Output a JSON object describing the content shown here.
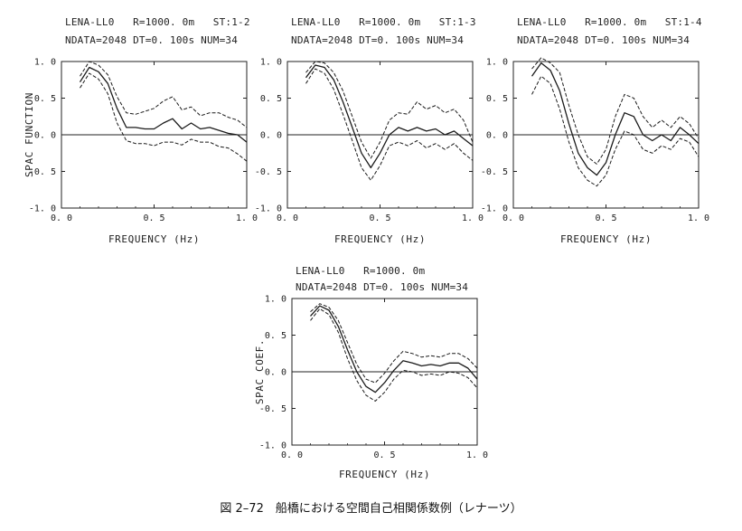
{
  "caption": "図 2–72　船橋における空間自己相関係数例（レナーツ）",
  "chart_data": [
    {
      "type": "line",
      "header": {
        "station": "LENA-LL0",
        "radius": "R=1000. 0m",
        "st": "ST:1-2",
        "ndata": "NDATA=2048",
        "dt": "DT=0. 100s",
        "num": "NUM=34"
      },
      "xlabel": "FREQUENCY (Hz)",
      "ylabel": "SPAC FUNCTION",
      "xlim": [
        0.0,
        1.0
      ],
      "ylim": [
        -1.0,
        1.0
      ],
      "xticks": [
        "0. 0",
        "0. 5",
        "1. 0"
      ],
      "yticks": [
        "1. 0",
        "0. 5",
        "0. 0",
        "-0. 5",
        "-1. 0"
      ],
      "x": [
        0.1,
        0.15,
        0.2,
        0.25,
        0.3,
        0.35,
        0.4,
        0.45,
        0.5,
        0.55,
        0.6,
        0.65,
        0.7,
        0.75,
        0.8,
        0.85,
        0.9,
        0.95,
        1.0
      ],
      "series": [
        {
          "role": "upper",
          "values": [
            0.8,
            1.0,
            0.95,
            0.82,
            0.52,
            0.3,
            0.28,
            0.32,
            0.36,
            0.46,
            0.52,
            0.34,
            0.38,
            0.26,
            0.3,
            0.3,
            0.24,
            0.2,
            0.1
          ]
        },
        {
          "role": "mean",
          "values": [
            0.72,
            0.92,
            0.86,
            0.7,
            0.36,
            0.1,
            0.1,
            0.08,
            0.08,
            0.16,
            0.22,
            0.08,
            0.16,
            0.08,
            0.1,
            0.06,
            0.02,
            0.0,
            -0.1
          ]
        },
        {
          "role": "lower",
          "values": [
            0.64,
            0.84,
            0.76,
            0.56,
            0.16,
            -0.08,
            -0.12,
            -0.12,
            -0.15,
            -0.1,
            -0.1,
            -0.14,
            -0.06,
            -0.1,
            -0.1,
            -0.16,
            -0.18,
            -0.26,
            -0.36
          ]
        }
      ]
    },
    {
      "type": "line",
      "header": {
        "station": "LENA-LL0",
        "radius": "R=1000. 0m",
        "st": "ST:1-3",
        "ndata": "NDATA=2048",
        "dt": "DT=0. 100s",
        "num": "NUM=34"
      },
      "xlabel": "FREQUENCY (Hz)",
      "ylabel": "",
      "xlim": [
        0.0,
        1.0
      ],
      "ylim": [
        -1.0,
        1.0
      ],
      "xticks": [
        "0. 0",
        "0. 5",
        "1. 0"
      ],
      "yticks": [
        "1. 0",
        "0. 5",
        "0. 0",
        "-0. 5",
        "-1. 0"
      ],
      "x": [
        0.1,
        0.15,
        0.2,
        0.25,
        0.3,
        0.35,
        0.4,
        0.45,
        0.5,
        0.55,
        0.6,
        0.65,
        0.7,
        0.75,
        0.8,
        0.85,
        0.9,
        0.95,
        1.0
      ],
      "series": [
        {
          "role": "upper",
          "values": [
            0.85,
            1.0,
            0.98,
            0.85,
            0.6,
            0.25,
            -0.1,
            -0.32,
            -0.1,
            0.2,
            0.3,
            0.28,
            0.45,
            0.35,
            0.4,
            0.3,
            0.35,
            0.2,
            -0.1
          ]
        },
        {
          "role": "mean",
          "values": [
            0.78,
            0.95,
            0.92,
            0.75,
            0.45,
            0.1,
            -0.25,
            -0.45,
            -0.25,
            0.0,
            0.1,
            0.05,
            0.1,
            0.05,
            0.08,
            0.0,
            0.05,
            -0.05,
            -0.15
          ]
        },
        {
          "role": "lower",
          "values": [
            0.7,
            0.9,
            0.84,
            0.62,
            0.28,
            -0.08,
            -0.45,
            -0.62,
            -0.42,
            -0.15,
            -0.1,
            -0.15,
            -0.08,
            -0.18,
            -0.12,
            -0.2,
            -0.12,
            -0.25,
            -0.35
          ]
        }
      ]
    },
    {
      "type": "line",
      "header": {
        "station": "LENA-LL0",
        "radius": "R=1000. 0m",
        "st": "ST:1-4",
        "ndata": "NDATA=2048",
        "dt": "DT=0. 100s",
        "num": "NUM=34"
      },
      "xlabel": "FREQUENCY (Hz)",
      "ylabel": "",
      "xlim": [
        0.0,
        1.0
      ],
      "ylim": [
        -1.0,
        1.0
      ],
      "xticks": [
        "0. 0",
        "0. 5",
        "1. 0"
      ],
      "yticks": [
        "1. 0",
        "0. 5",
        "0. 0",
        "-0. 5",
        "-1. 0"
      ],
      "x": [
        0.1,
        0.15,
        0.2,
        0.25,
        0.3,
        0.35,
        0.4,
        0.45,
        0.5,
        0.55,
        0.6,
        0.65,
        0.7,
        0.75,
        0.8,
        0.85,
        0.9,
        0.95,
        1.0
      ],
      "series": [
        {
          "role": "upper",
          "values": [
            0.9,
            1.05,
            0.98,
            0.85,
            0.4,
            0.0,
            -0.3,
            -0.4,
            -0.2,
            0.25,
            0.55,
            0.5,
            0.25,
            0.1,
            0.2,
            0.1,
            0.25,
            0.15,
            -0.05
          ]
        },
        {
          "role": "mean",
          "values": [
            0.8,
            0.98,
            0.88,
            0.6,
            0.15,
            -0.25,
            -0.45,
            -0.55,
            -0.38,
            0.0,
            0.3,
            0.25,
            0.0,
            -0.08,
            0.0,
            -0.08,
            0.1,
            0.0,
            -0.12
          ]
        },
        {
          "role": "lower",
          "values": [
            0.55,
            0.8,
            0.7,
            0.35,
            -0.1,
            -0.45,
            -0.62,
            -0.7,
            -0.55,
            -0.2,
            0.05,
            0.0,
            -0.2,
            -0.25,
            -0.15,
            -0.2,
            -0.05,
            -0.1,
            -0.3
          ]
        }
      ]
    },
    {
      "type": "line",
      "header": {
        "station": "LENA-LL0",
        "radius": "R=1000. 0m",
        "st": "",
        "ndata": "NDATA=2048",
        "dt": "DT=0. 100s",
        "num": "NUM=34"
      },
      "xlabel": "FREQUENCY (Hz)",
      "ylabel": "SPAC COEF.",
      "xlim": [
        0.0,
        1.0
      ],
      "ylim": [
        -1.0,
        1.0
      ],
      "xticks": [
        "0. 0",
        "0. 5",
        "1. 0"
      ],
      "yticks": [
        "1. 0",
        "0. 5",
        "0. 0",
        "-0. 5",
        "-1. 0"
      ],
      "x": [
        0.1,
        0.15,
        0.2,
        0.25,
        0.3,
        0.35,
        0.4,
        0.45,
        0.5,
        0.55,
        0.6,
        0.65,
        0.7,
        0.75,
        0.8,
        0.85,
        0.9,
        0.95,
        1.0
      ],
      "series": [
        {
          "role": "upper",
          "values": [
            0.82,
            0.93,
            0.88,
            0.7,
            0.4,
            0.1,
            -0.1,
            -0.15,
            -0.02,
            0.15,
            0.28,
            0.25,
            0.2,
            0.22,
            0.2,
            0.25,
            0.25,
            0.18,
            0.05
          ]
        },
        {
          "role": "mean",
          "values": [
            0.76,
            0.9,
            0.84,
            0.62,
            0.3,
            0.0,
            -0.2,
            -0.28,
            -0.15,
            0.02,
            0.15,
            0.12,
            0.08,
            0.1,
            0.08,
            0.12,
            0.12,
            0.05,
            -0.1
          ]
        },
        {
          "role": "lower",
          "values": [
            0.7,
            0.86,
            0.78,
            0.54,
            0.18,
            -0.12,
            -0.32,
            -0.4,
            -0.28,
            -0.1,
            0.02,
            0.0,
            -0.05,
            -0.03,
            -0.05,
            0.0,
            -0.02,
            -0.08,
            -0.22
          ]
        }
      ]
    }
  ]
}
